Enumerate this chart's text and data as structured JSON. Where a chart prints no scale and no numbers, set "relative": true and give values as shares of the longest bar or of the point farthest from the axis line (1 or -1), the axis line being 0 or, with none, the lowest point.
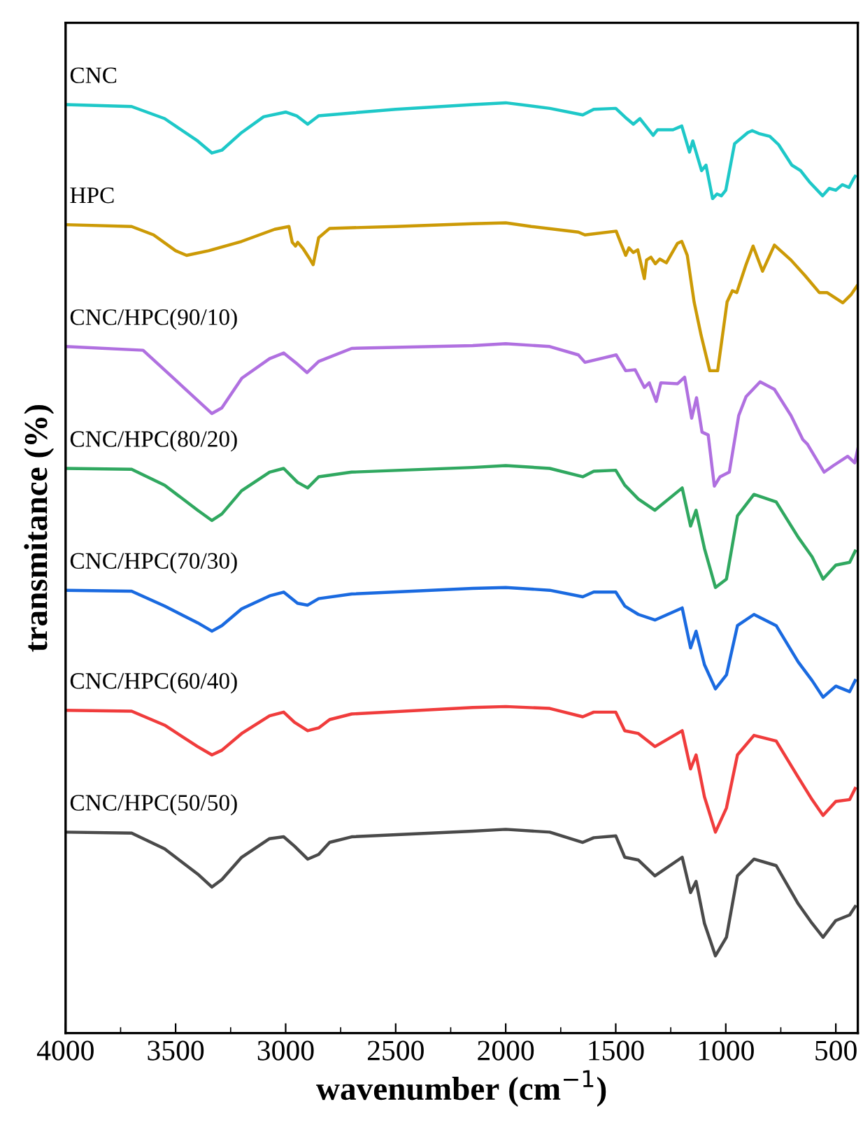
{
  "chart_data": {
    "type": "line",
    "relative": true,
    "xlabel": "wavenumber (cm$^{−1}$)",
    "ylabel": "transmitance (%)",
    "xlim": [
      4000,
      400
    ],
    "xticks": [
      4000,
      {
        "value": 3750,
        "label": null
      },
      3500,
      {
        "value": 3250,
        "label": null
      },
      3000,
      {
        "value": 2750,
        "label": null
      },
      2500,
      {
        "value": 2250,
        "label": null
      },
      2000,
      {
        "value": 1750,
        "label": null
      },
      1500,
      {
        "value": 1250,
        "label": null
      },
      1000,
      {
        "value": 750,
        "label": null
      },
      500
    ],
    "grid": false,
    "legend": false,
    "marker": "none",
    "line_style": "solid",
    "series": [
      {
        "name": "CNC",
        "color": "#1ec8c8",
        "x": [
          4000,
          3700,
          3550,
          3400,
          3335,
          3290,
          3200,
          3100,
          3000,
          2950,
          2900,
          2850,
          2700,
          2500,
          2150,
          2000,
          1800,
          1650,
          1600,
          1500,
          1450,
          1420,
          1390,
          1330,
          1310,
          1240,
          1200,
          1165,
          1150,
          1110,
          1090,
          1060,
          1040,
          1020,
          1000,
          960,
          900,
          880,
          850,
          800,
          760,
          700,
          660,
          620,
          560,
          530,
          500,
          470,
          440,
          420,
          412
        ],
        "values": [
          0.998,
          0.996,
          0.983,
          0.959,
          0.946,
          0.949,
          0.968,
          0.985,
          0.99,
          0.986,
          0.977,
          0.986,
          0.989,
          0.993,
          0.998,
          1.0,
          0.994,
          0.987,
          0.993,
          0.994,
          0.983,
          0.977,
          0.983,
          0.965,
          0.971,
          0.971,
          0.975,
          0.947,
          0.959,
          0.927,
          0.933,
          0.897,
          0.902,
          0.9,
          0.906,
          0.956,
          0.968,
          0.97,
          0.967,
          0.964,
          0.955,
          0.933,
          0.927,
          0.915,
          0.9,
          0.908,
          0.906,
          0.912,
          0.909,
          0.918,
          0.921
        ]
      },
      {
        "name": "HPC",
        "color": "#cc9a06",
        "x": [
          4000,
          3700,
          3600,
          3500,
          3450,
          3350,
          3200,
          3050,
          2985,
          2970,
          2955,
          2945,
          2920,
          2890,
          2875,
          2850,
          2800,
          2500,
          2150,
          2000,
          1884,
          1670,
          1640,
          1498,
          1455,
          1440,
          1420,
          1400,
          1370,
          1360,
          1340,
          1320,
          1300,
          1270,
          1219,
          1200,
          1175,
          1144,
          1112,
          1073,
          1037,
          994,
          970,
          950,
          908,
          876,
          833,
          779,
          704,
          639,
          575,
          540,
          468,
          430,
          404
        ],
        "values": [
          0.869,
          0.867,
          0.858,
          0.841,
          0.836,
          0.841,
          0.851,
          0.864,
          0.867,
          0.85,
          0.846,
          0.85,
          0.843,
          0.832,
          0.826,
          0.855,
          0.865,
          0.867,
          0.87,
          0.871,
          0.867,
          0.861,
          0.858,
          0.862,
          0.836,
          0.844,
          0.839,
          0.842,
          0.811,
          0.831,
          0.834,
          0.827,
          0.832,
          0.828,
          0.849,
          0.851,
          0.836,
          0.786,
          0.75,
          0.712,
          0.712,
          0.786,
          0.798,
          0.796,
          0.826,
          0.846,
          0.819,
          0.847,
          0.831,
          0.814,
          0.796,
          0.796,
          0.785,
          0.794,
          0.803
        ]
      },
      {
        "name": "CNC/HPC(90/10)",
        "color": "#b070e0",
        "x": [
          4000,
          3648,
          3335,
          3290,
          3199,
          3073,
          3009,
          2946,
          2903,
          2850,
          2700,
          2150,
          2000,
          1800,
          1670,
          1640,
          1498,
          1455,
          1412,
          1370,
          1348,
          1316,
          1295,
          1219,
          1187,
          1155,
          1133,
          1108,
          1080,
          1052,
          1026,
          984,
          941,
          908,
          844,
          779,
          704,
          650,
          629,
          553,
          511,
          446,
          414,
          400
        ],
        "values": [
          0.738,
          0.734,
          0.666,
          0.672,
          0.704,
          0.725,
          0.731,
          0.719,
          0.71,
          0.722,
          0.736,
          0.739,
          0.741,
          0.738,
          0.729,
          0.721,
          0.729,
          0.712,
          0.713,
          0.694,
          0.699,
          0.679,
          0.699,
          0.698,
          0.705,
          0.661,
          0.683,
          0.646,
          0.643,
          0.588,
          0.598,
          0.603,
          0.664,
          0.684,
          0.7,
          0.692,
          0.664,
          0.638,
          0.633,
          0.603,
          0.61,
          0.62,
          0.613,
          0.628
        ]
      },
      {
        "name": "CNC/HPC(80/20)",
        "color": "#30a860",
        "x": [
          4000,
          3700,
          3550,
          3400,
          3335,
          3290,
          3200,
          3073,
          3009,
          2946,
          2900,
          2850,
          2700,
          2150,
          2000,
          1800,
          1650,
          1600,
          1500,
          1459,
          1397,
          1322,
          1198,
          1160,
          1135,
          1097,
          1047,
          997,
          947,
          872,
          771,
          671,
          608,
          558,
          500,
          437,
          412
        ],
        "values": [
          0.607,
          0.606,
          0.589,
          0.562,
          0.551,
          0.558,
          0.583,
          0.603,
          0.607,
          0.592,
          0.586,
          0.598,
          0.603,
          0.608,
          0.61,
          0.607,
          0.598,
          0.604,
          0.605,
          0.589,
          0.574,
          0.562,
          0.586,
          0.545,
          0.562,
          0.521,
          0.479,
          0.488,
          0.556,
          0.579,
          0.571,
          0.533,
          0.512,
          0.488,
          0.503,
          0.506,
          0.518
        ]
      },
      {
        "name": "CNC/HPC(70/30)",
        "color": "#1a6ae0",
        "x": [
          4000,
          3700,
          3550,
          3400,
          3335,
          3290,
          3200,
          3073,
          3009,
          2946,
          2900,
          2850,
          2700,
          2150,
          2000,
          1800,
          1650,
          1600,
          1500,
          1459,
          1397,
          1322,
          1198,
          1160,
          1135,
          1097,
          1047,
          997,
          947,
          872,
          771,
          671,
          608,
          558,
          500,
          437,
          412
        ],
        "values": [
          0.476,
          0.475,
          0.459,
          0.441,
          0.432,
          0.438,
          0.456,
          0.47,
          0.474,
          0.462,
          0.46,
          0.467,
          0.472,
          0.478,
          0.479,
          0.476,
          0.469,
          0.474,
          0.474,
          0.459,
          0.45,
          0.444,
          0.457,
          0.414,
          0.432,
          0.396,
          0.37,
          0.385,
          0.438,
          0.45,
          0.438,
          0.399,
          0.379,
          0.361,
          0.373,
          0.367,
          0.379
        ]
      },
      {
        "name": "CNC/HPC(60/40)",
        "color": "#f03c3c",
        "x": [
          4000,
          3700,
          3550,
          3400,
          3335,
          3290,
          3200,
          3073,
          3009,
          2960,
          2900,
          2850,
          2800,
          2700,
          2150,
          2000,
          1800,
          1650,
          1600,
          1500,
          1459,
          1397,
          1322,
          1198,
          1160,
          1135,
          1097,
          1047,
          997,
          947,
          872,
          771,
          671,
          608,
          558,
          500,
          437,
          412
        ],
        "values": [
          0.347,
          0.346,
          0.331,
          0.308,
          0.299,
          0.304,
          0.322,
          0.341,
          0.345,
          0.334,
          0.325,
          0.328,
          0.337,
          0.343,
          0.35,
          0.351,
          0.349,
          0.34,
          0.345,
          0.345,
          0.325,
          0.322,
          0.308,
          0.325,
          0.284,
          0.299,
          0.254,
          0.216,
          0.242,
          0.299,
          0.32,
          0.314,
          0.275,
          0.251,
          0.234,
          0.249,
          0.251,
          0.263
        ]
      },
      {
        "name": "CNC/HPC(50/50)",
        "color": "#4a4a4a",
        "x": [
          4000,
          3700,
          3550,
          3400,
          3335,
          3290,
          3200,
          3073,
          3009,
          2960,
          2900,
          2850,
          2800,
          2700,
          2150,
          2000,
          1800,
          1650,
          1600,
          1500,
          1459,
          1397,
          1322,
          1198,
          1160,
          1135,
          1097,
          1047,
          997,
          947,
          872,
          771,
          671,
          608,
          558,
          500,
          437,
          412
        ],
        "values": [
          0.216,
          0.215,
          0.198,
          0.171,
          0.157,
          0.165,
          0.189,
          0.209,
          0.211,
          0.201,
          0.187,
          0.192,
          0.205,
          0.211,
          0.217,
          0.219,
          0.216,
          0.205,
          0.21,
          0.212,
          0.189,
          0.186,
          0.169,
          0.189,
          0.151,
          0.163,
          0.118,
          0.083,
          0.103,
          0.169,
          0.187,
          0.18,
          0.139,
          0.118,
          0.103,
          0.121,
          0.127,
          0.136
        ]
      }
    ]
  }
}
